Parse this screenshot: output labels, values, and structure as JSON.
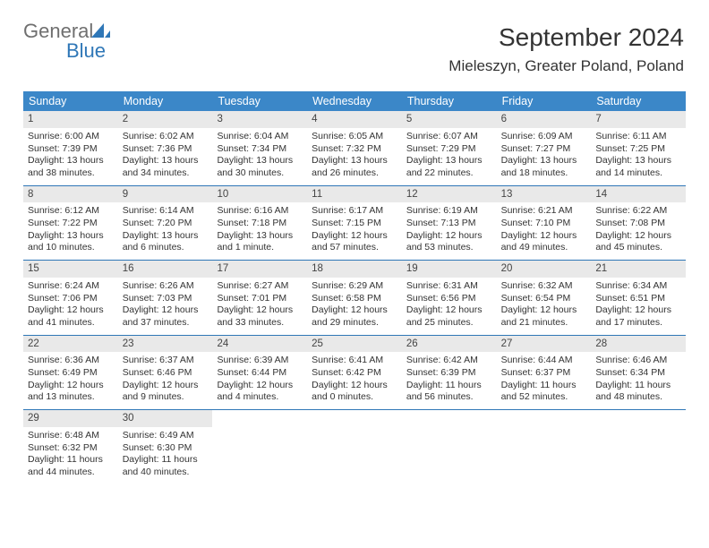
{
  "logo": {
    "text1": "General",
    "text2": "Blue"
  },
  "title": "September 2024",
  "location": "Mieleszyn, Greater Poland, Poland",
  "header_bg": "#3b87c8",
  "border_color": "#2f77b7",
  "daynum_bg": "#e9e9e9",
  "weekdays": [
    "Sunday",
    "Monday",
    "Tuesday",
    "Wednesday",
    "Thursday",
    "Friday",
    "Saturday"
  ],
  "weeks": [
    [
      {
        "n": "1",
        "sr": "6:00 AM",
        "ss": "7:39 PM",
        "dl": "13 hours and 38 minutes."
      },
      {
        "n": "2",
        "sr": "6:02 AM",
        "ss": "7:36 PM",
        "dl": "13 hours and 34 minutes."
      },
      {
        "n": "3",
        "sr": "6:04 AM",
        "ss": "7:34 PM",
        "dl": "13 hours and 30 minutes."
      },
      {
        "n": "4",
        "sr": "6:05 AM",
        "ss": "7:32 PM",
        "dl": "13 hours and 26 minutes."
      },
      {
        "n": "5",
        "sr": "6:07 AM",
        "ss": "7:29 PM",
        "dl": "13 hours and 22 minutes."
      },
      {
        "n": "6",
        "sr": "6:09 AM",
        "ss": "7:27 PM",
        "dl": "13 hours and 18 minutes."
      },
      {
        "n": "7",
        "sr": "6:11 AM",
        "ss": "7:25 PM",
        "dl": "13 hours and 14 minutes."
      }
    ],
    [
      {
        "n": "8",
        "sr": "6:12 AM",
        "ss": "7:22 PM",
        "dl": "13 hours and 10 minutes."
      },
      {
        "n": "9",
        "sr": "6:14 AM",
        "ss": "7:20 PM",
        "dl": "13 hours and 6 minutes."
      },
      {
        "n": "10",
        "sr": "6:16 AM",
        "ss": "7:18 PM",
        "dl": "13 hours and 1 minute."
      },
      {
        "n": "11",
        "sr": "6:17 AM",
        "ss": "7:15 PM",
        "dl": "12 hours and 57 minutes."
      },
      {
        "n": "12",
        "sr": "6:19 AM",
        "ss": "7:13 PM",
        "dl": "12 hours and 53 minutes."
      },
      {
        "n": "13",
        "sr": "6:21 AM",
        "ss": "7:10 PM",
        "dl": "12 hours and 49 minutes."
      },
      {
        "n": "14",
        "sr": "6:22 AM",
        "ss": "7:08 PM",
        "dl": "12 hours and 45 minutes."
      }
    ],
    [
      {
        "n": "15",
        "sr": "6:24 AM",
        "ss": "7:06 PM",
        "dl": "12 hours and 41 minutes."
      },
      {
        "n": "16",
        "sr": "6:26 AM",
        "ss": "7:03 PM",
        "dl": "12 hours and 37 minutes."
      },
      {
        "n": "17",
        "sr": "6:27 AM",
        "ss": "7:01 PM",
        "dl": "12 hours and 33 minutes."
      },
      {
        "n": "18",
        "sr": "6:29 AM",
        "ss": "6:58 PM",
        "dl": "12 hours and 29 minutes."
      },
      {
        "n": "19",
        "sr": "6:31 AM",
        "ss": "6:56 PM",
        "dl": "12 hours and 25 minutes."
      },
      {
        "n": "20",
        "sr": "6:32 AM",
        "ss": "6:54 PM",
        "dl": "12 hours and 21 minutes."
      },
      {
        "n": "21",
        "sr": "6:34 AM",
        "ss": "6:51 PM",
        "dl": "12 hours and 17 minutes."
      }
    ],
    [
      {
        "n": "22",
        "sr": "6:36 AM",
        "ss": "6:49 PM",
        "dl": "12 hours and 13 minutes."
      },
      {
        "n": "23",
        "sr": "6:37 AM",
        "ss": "6:46 PM",
        "dl": "12 hours and 9 minutes."
      },
      {
        "n": "24",
        "sr": "6:39 AM",
        "ss": "6:44 PM",
        "dl": "12 hours and 4 minutes."
      },
      {
        "n": "25",
        "sr": "6:41 AM",
        "ss": "6:42 PM",
        "dl": "12 hours and 0 minutes."
      },
      {
        "n": "26",
        "sr": "6:42 AM",
        "ss": "6:39 PM",
        "dl": "11 hours and 56 minutes."
      },
      {
        "n": "27",
        "sr": "6:44 AM",
        "ss": "6:37 PM",
        "dl": "11 hours and 52 minutes."
      },
      {
        "n": "28",
        "sr": "6:46 AM",
        "ss": "6:34 PM",
        "dl": "11 hours and 48 minutes."
      }
    ],
    [
      {
        "n": "29",
        "sr": "6:48 AM",
        "ss": "6:32 PM",
        "dl": "11 hours and 44 minutes."
      },
      {
        "n": "30",
        "sr": "6:49 AM",
        "ss": "6:30 PM",
        "dl": "11 hours and 40 minutes."
      },
      null,
      null,
      null,
      null,
      null
    ]
  ],
  "labels": {
    "sunrise": "Sunrise:",
    "sunset": "Sunset:",
    "daylight": "Daylight:"
  }
}
